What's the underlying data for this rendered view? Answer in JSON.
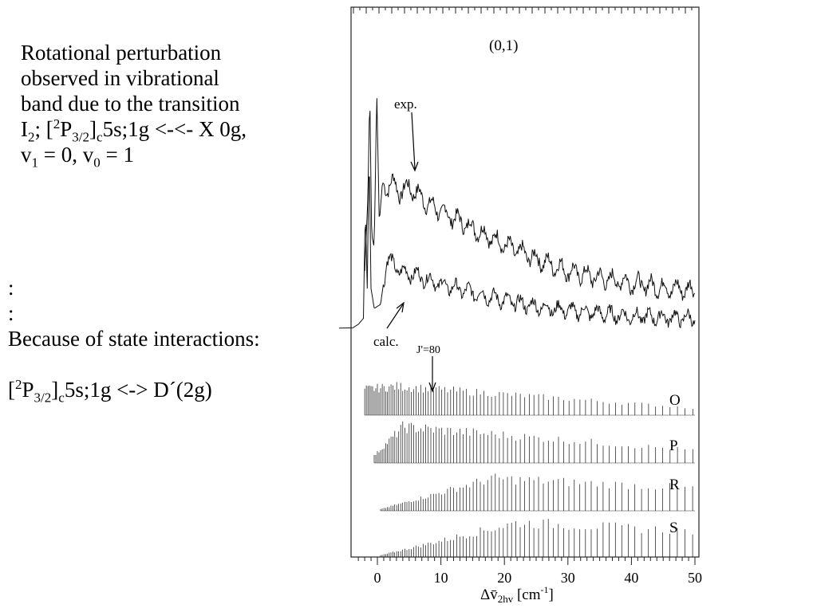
{
  "description": {
    "line1": "Rotational perturbation",
    "line2": "observed in vibrational",
    "line3": "band due to the transition",
    "line4": {
      "a": "I",
      "a_sub": "2",
      "b": "; [",
      "b_sup": "2",
      "c": "P",
      "c_sub": "3/2",
      "d": "]",
      "d_sub": "c",
      "e": "5s;1g <-<- X 0g,"
    },
    "line5": {
      "a": "v",
      "a_sub": "1",
      "b": " = 0, v",
      "b_sub": "0",
      "c": " = 1"
    }
  },
  "note": {
    "dot1": ":",
    "dot2": ":",
    "because": "Because of state interactions:",
    "interaction": {
      "a": "[",
      "a_sup": "2",
      "b": "P",
      "b_sub": "3/2",
      "c": "]",
      "c_sub": "c",
      "d": "5s;1g <-> D´(2g)"
    }
  },
  "chart_data": {
    "type": "line",
    "panel_label": "(0,1)",
    "annotations": {
      "exp": "exp.",
      "calc": "calc.",
      "jmark": "J'=80"
    },
    "branches": [
      "O",
      "P",
      "R",
      "S"
    ],
    "x_ticks": [
      0,
      10,
      20,
      30,
      40,
      50
    ],
    "xlim": [
      -4,
      50
    ],
    "xlabel": {
      "main": "Δv̄",
      "sub": "2hv",
      "unit": " [cm",
      "unit_sup": "-1",
      "close": "]"
    },
    "series": [
      {
        "values": [
          [
            -2.0,
            0.25
          ],
          [
            -1.5,
            0.55
          ],
          [
            -1.2,
            1.0
          ],
          [
            -0.9,
            0.4
          ],
          [
            -0.5,
            0.35
          ],
          [
            -0.1,
            1.0
          ],
          [
            0.3,
            0.45
          ],
          [
            0.8,
            0.62
          ],
          [
            1.5,
            0.6
          ],
          [
            2.5,
            0.62
          ],
          [
            3.5,
            0.58
          ],
          [
            5.0,
            0.6
          ],
          [
            6.0,
            0.58
          ],
          [
            8.0,
            0.53
          ],
          [
            10.0,
            0.5
          ],
          [
            15.0,
            0.43
          ],
          [
            20.0,
            0.36
          ],
          [
            25.0,
            0.3
          ],
          [
            30.0,
            0.25
          ],
          [
            35.0,
            0.22
          ],
          [
            40.0,
            0.2
          ],
          [
            45.0,
            0.18
          ],
          [
            50.0,
            0.17
          ]
        ]
      },
      {
        "values": [
          [
            -4.0,
            0.0
          ],
          [
            -3.0,
            0.02
          ],
          [
            -2.2,
            0.05
          ],
          [
            -1.9,
            0.6
          ],
          [
            -1.6,
            0.2
          ],
          [
            -1.3,
            0.9
          ],
          [
            -1.0,
            0.2
          ],
          [
            -0.5,
            0.1
          ],
          [
            0.5,
            0.12
          ],
          [
            1.5,
            0.35
          ],
          [
            2.5,
            0.32
          ],
          [
            4.0,
            0.28
          ],
          [
            6.0,
            0.27
          ],
          [
            10.0,
            0.22
          ],
          [
            15.0,
            0.18
          ],
          [
            20.0,
            0.14
          ],
          [
            25.0,
            0.11
          ],
          [
            30.0,
            0.09
          ],
          [
            40.0,
            0.06
          ],
          [
            50.0,
            0.05
          ]
        ]
      }
    ],
    "stick_envelopes": {
      "O": {
        "start": -2.0,
        "peak": 3.0,
        "h_start": 0.9,
        "h_peak": 1.0,
        "h_end": 0.25
      },
      "P": {
        "start": -0.5,
        "peak": 4.0,
        "h_start": 0.2,
        "h_peak": 1.0,
        "h_end": 0.35
      },
      "R": {
        "start": 0.5,
        "peak": 18.0,
        "h_start": 0.05,
        "h_peak": 1.0,
        "h_end": 0.7
      },
      "S": {
        "start": 0.5,
        "peak": 22.0,
        "h_start": 0.05,
        "h_peak": 1.0,
        "h_end": 0.75
      }
    }
  }
}
